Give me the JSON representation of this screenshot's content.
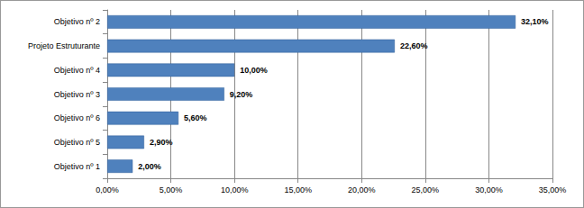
{
  "chart_data": {
    "type": "bar",
    "orientation": "horizontal",
    "categories": [
      "Objetivo nº 2",
      "Projeto Estruturante",
      "Objetivo nº 4",
      "Objetivo nº 3",
      "Objetivo nº 6",
      "Objetivo nº 5",
      "Objetivo nº 1"
    ],
    "values": [
      32.1,
      22.6,
      10,
      9.2,
      5.6,
      2.9,
      2
    ],
    "value_labels": [
      "32,10%",
      "22,60%",
      "10,00%",
      "9,20%",
      "5,60%",
      "2,90%",
      "2,00%"
    ],
    "color": "#4f81bd",
    "xlim": [
      0,
      35
    ],
    "xticks": [
      {
        "value": 0,
        "label": "0,00%"
      },
      {
        "value": 5,
        "label": "5,00%"
      },
      {
        "value": 10,
        "label": "10,00%"
      },
      {
        "value": 15,
        "label": "15,00%"
      },
      {
        "value": 20,
        "label": "20,00%"
      },
      {
        "value": 25,
        "label": "25,00%"
      },
      {
        "value": 30,
        "label": "30,00%"
      },
      {
        "value": 35,
        "label": "35,00%"
      }
    ],
    "grid": true,
    "data_labels": true
  }
}
